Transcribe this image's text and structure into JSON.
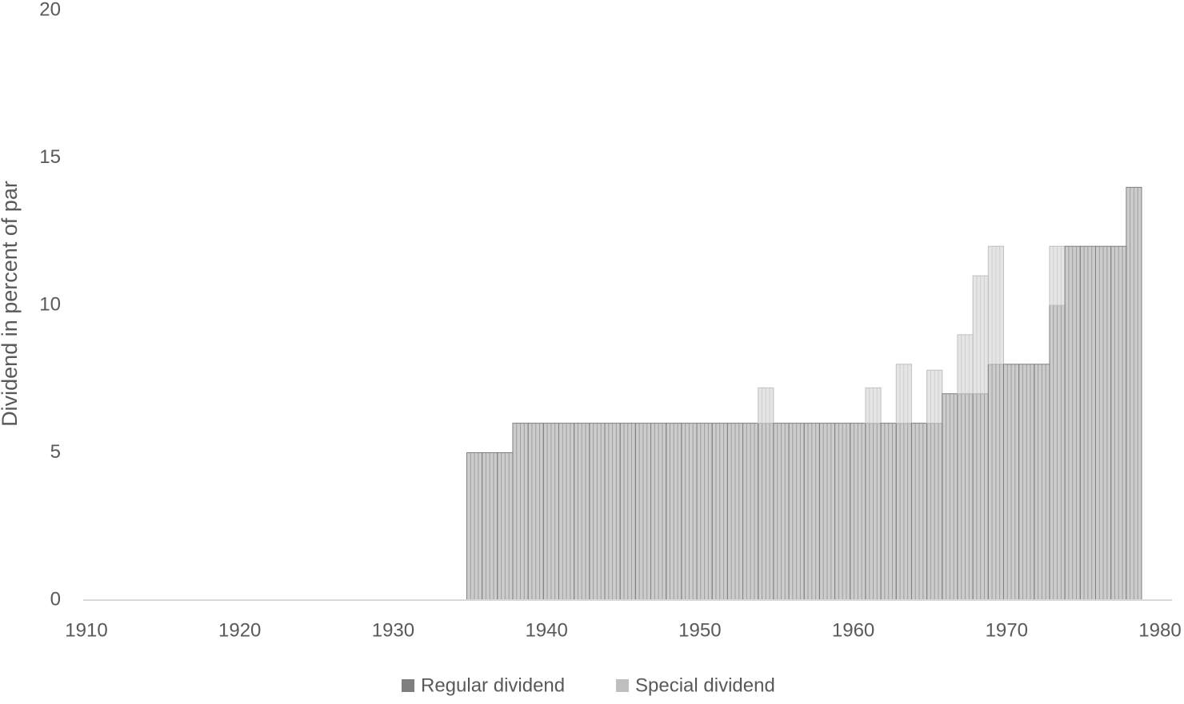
{
  "chart_data": {
    "type": "stacked-bar",
    "y_label": "Dividend in percent of par",
    "x": [
      1935,
      1936,
      1937,
      1938,
      1939,
      1940,
      1941,
      1942,
      1943,
      1944,
      1945,
      1946,
      1947,
      1948,
      1949,
      1950,
      1951,
      1952,
      1953,
      1954,
      1955,
      1956,
      1957,
      1958,
      1959,
      1960,
      1961,
      1962,
      1963,
      1964,
      1965,
      1966,
      1967,
      1968,
      1969,
      1970,
      1971,
      1972,
      1973,
      1974,
      1975,
      1976,
      1977,
      1978
    ],
    "series": [
      {
        "name": "Regular dividend",
        "color": "#7f7f7f",
        "values": [
          5,
          5,
          5,
          6,
          6,
          6,
          6,
          6,
          6,
          6,
          6,
          6,
          6,
          6,
          6,
          6,
          6,
          6,
          6,
          6,
          6,
          6,
          6,
          6,
          6,
          6,
          6,
          6,
          6,
          6,
          6,
          7,
          7,
          7,
          8,
          8,
          8,
          8,
          10,
          12,
          12,
          12,
          12,
          14
        ]
      },
      {
        "name": "Special dividend",
        "color": "#bfbfbf",
        "values": [
          0,
          0,
          0,
          0,
          0,
          0,
          0,
          0,
          0,
          0,
          0,
          0,
          0,
          0,
          0,
          0,
          0,
          0,
          0,
          1.2,
          0,
          0,
          0,
          0,
          0,
          0,
          1.2,
          0,
          2,
          0,
          1.8,
          0,
          2,
          4,
          4,
          0,
          0,
          0,
          2,
          0,
          0,
          0,
          0,
          0
        ]
      }
    ],
    "xlim": [
      1910,
      1980
    ],
    "xticks": [
      1910,
      1920,
      1930,
      1940,
      1950,
      1960,
      1970,
      1980
    ],
    "ylim": [
      0,
      20
    ],
    "yticks": [
      0,
      5,
      10,
      15,
      20
    ],
    "legend": "bottom"
  }
}
